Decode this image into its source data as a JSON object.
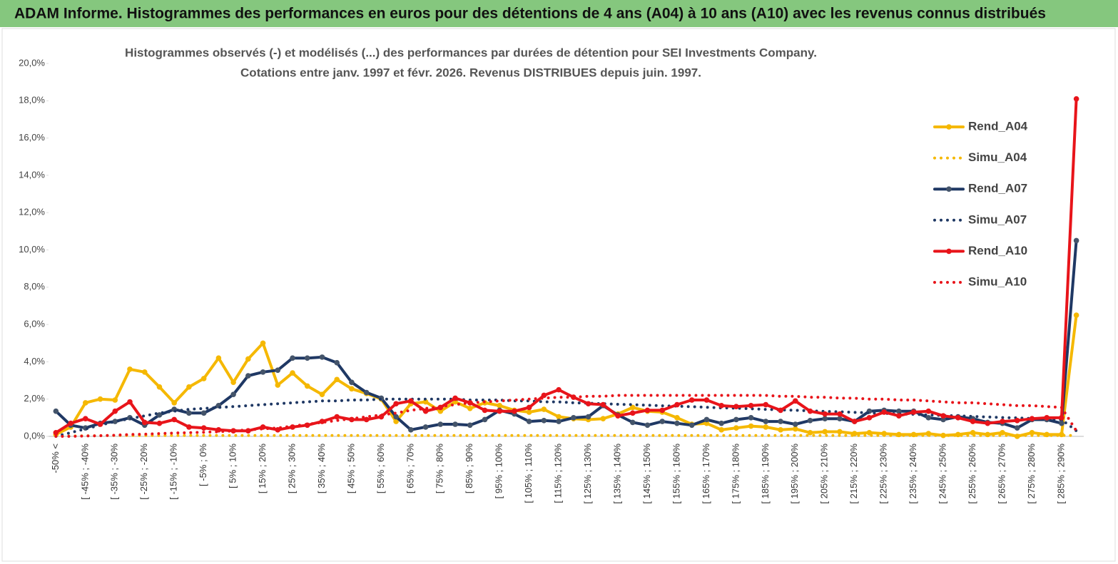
{
  "header": {
    "title": "ADAM Informe. Histogrammes des performances en euros pour des détentions de 4 ans (A04) à 10 ans (A10) avec les revenus connus distribués"
  },
  "chart_data": {
    "type": "line",
    "title": "Histogrammes observés (-) et modélisés (...) des performances par durées de détention pour SEI Investments Company.",
    "subtitle": "Cotations entre janv. 1997 et févr.  2026. Revenus DISTRIBUES depuis juin. 1997.",
    "categories": [
      "-50% <",
      null,
      "[ -45% ; -40%",
      null,
      "[ -35% ; -30%",
      null,
      "[ -25% ; -20%",
      null,
      "[ -15% ; -10%",
      null,
      "[ -5% ; 0%",
      null,
      "[ 5% ; 10%",
      null,
      "[ 15% ; 20%",
      null,
      "[ 25% ; 30%",
      null,
      "[ 35% ; 40%",
      null,
      "[ 45% ; 50%",
      null,
      "[ 55% ; 60%",
      null,
      "[ 65% ; 70%",
      null,
      "[ 75% ; 80%",
      null,
      "[ 85% ; 90%",
      null,
      "[ 95% ; 100%",
      null,
      "[ 105% ; 110%",
      null,
      "[ 115% ; 120%",
      null,
      "[ 125% ; 130%",
      null,
      "[ 135% ; 140%",
      null,
      "[ 145% ; 150%",
      null,
      "[ 155% ; 160%",
      null,
      "[ 165% ; 170%",
      null,
      "[ 175% ; 180%",
      null,
      "[ 185% ; 190%",
      null,
      "[ 195% ; 200%",
      null,
      "[ 205% ; 210%",
      null,
      "[ 215% ; 220%",
      null,
      "[ 225% ; 230%",
      null,
      "[ 235% ; 240%",
      null,
      "[ 245% ; 250%",
      null,
      "[ 255% ; 260%",
      null,
      "[ 265% ; 270%",
      null,
      "[ 275% ; 280%",
      null,
      "[ 285% ; 290%",
      null
    ],
    "series": [
      {
        "name": "Rend_A04",
        "color": "#f5b800",
        "style": "solid",
        "marker": true,
        "values": [
          0.1,
          0.5,
          1.8,
          2.0,
          1.95,
          3.6,
          3.45,
          2.65,
          1.8,
          2.65,
          3.1,
          4.2,
          2.9,
          4.15,
          5.0,
          2.75,
          3.4,
          2.7,
          2.25,
          3.05,
          2.55,
          2.3,
          2.0,
          0.8,
          1.75,
          1.85,
          1.35,
          1.85,
          1.5,
          1.8,
          1.65,
          1.4,
          1.3,
          1.45,
          1.05,
          0.95,
          0.9,
          0.95,
          1.2,
          1.55,
          1.35,
          1.3,
          1.0,
          0.65,
          0.7,
          0.35,
          0.45,
          0.55,
          0.5,
          0.35,
          0.4,
          0.2,
          0.25,
          0.25,
          0.15,
          0.2,
          0.15,
          0.1,
          0.1,
          0.15,
          0.05,
          0.1,
          0.2,
          0.1,
          0.2,
          0.0,
          0.2,
          0.1,
          0.1,
          6.5
        ]
      },
      {
        "name": "Simu_A04",
        "color": "#f5b800",
        "style": "dotted",
        "marker": false,
        "values": [
          0,
          0.02,
          0.03,
          0.04,
          0.05,
          0.05,
          0.05,
          0.05,
          0.05,
          0.05,
          0.05,
          0.05,
          0.05,
          0.05,
          0.05,
          0.05,
          0.05,
          0.05,
          0.05,
          0.05,
          0.05,
          0.05,
          0.05,
          0.05,
          0.05,
          0.05,
          0.05,
          0.05,
          0.05,
          0.05,
          0.05,
          0.05,
          0.05,
          0.05,
          0.05,
          0.05,
          0.05,
          0.05,
          0.05,
          0.05,
          0.05,
          0.05,
          0.05,
          0.05,
          0.05,
          0.05,
          0.05,
          0.05,
          0.05,
          0.05,
          0.05,
          0.05,
          0.05,
          0.05,
          0.05,
          0.05,
          0.05,
          0.05,
          0.05,
          0.05,
          0.05,
          0.05,
          0.05,
          0.05,
          0.05,
          0.05,
          0.05,
          0.05,
          0.05,
          0.05
        ]
      },
      {
        "name": "Rend_A07",
        "color": "#1f3864",
        "style": "solid",
        "marker": true,
        "values": [
          1.35,
          0.6,
          0.45,
          0.7,
          0.8,
          1.0,
          0.6,
          1.15,
          1.45,
          1.25,
          1.25,
          1.65,
          2.25,
          3.25,
          3.45,
          3.55,
          4.2,
          4.2,
          4.25,
          3.95,
          2.9,
          2.35,
          2.05,
          1.05,
          0.35,
          0.5,
          0.65,
          0.65,
          0.6,
          0.9,
          1.4,
          1.2,
          0.8,
          0.85,
          0.8,
          1.0,
          1.05,
          1.65,
          1.15,
          0.75,
          0.6,
          0.8,
          0.7,
          0.6,
          0.9,
          0.7,
          0.9,
          1.0,
          0.8,
          0.8,
          0.65,
          0.85,
          0.95,
          0.95,
          0.8,
          1.35,
          1.4,
          1.35,
          1.35,
          1.0,
          0.9,
          1.05,
          0.95,
          0.75,
          0.7,
          0.45,
          0.9,
          0.9,
          0.7,
          10.5
        ]
      },
      {
        "name": "Simu_A07",
        "color": "#1f3864",
        "style": "dotted",
        "marker": false,
        "values": [
          0,
          0.2,
          0.4,
          0.6,
          0.8,
          0.95,
          1.1,
          1.25,
          1.35,
          1.45,
          1.5,
          1.55,
          1.6,
          1.65,
          1.7,
          1.75,
          1.8,
          1.85,
          1.9,
          1.9,
          1.95,
          1.95,
          2.0,
          2.0,
          2.0,
          2.0,
          2.0,
          2.0,
          1.95,
          1.95,
          1.95,
          1.9,
          1.9,
          1.85,
          1.85,
          1.8,
          1.78,
          1.75,
          1.72,
          1.7,
          1.67,
          1.64,
          1.62,
          1.59,
          1.56,
          1.53,
          1.51,
          1.48,
          1.45,
          1.42,
          1.4,
          1.37,
          1.34,
          1.32,
          1.29,
          1.26,
          1.23,
          1.21,
          1.18,
          1.15,
          1.12,
          1.1,
          1.07,
          1.04,
          1.01,
          0.99,
          0.96,
          0.93,
          0.9,
          0.3
        ]
      },
      {
        "name": "Rend_A10",
        "color": "#e8141a",
        "style": "solid",
        "marker": true,
        "values": [
          0.2,
          0.7,
          0.95,
          0.65,
          1.35,
          1.85,
          0.75,
          0.7,
          0.9,
          0.5,
          0.45,
          0.35,
          0.3,
          0.3,
          0.5,
          0.35,
          0.5,
          0.6,
          0.8,
          1.05,
          0.9,
          0.9,
          1.05,
          1.75,
          1.9,
          1.35,
          1.55,
          2.05,
          1.8,
          1.4,
          1.35,
          1.35,
          1.55,
          2.2,
          2.5,
          2.1,
          1.75,
          1.7,
          1.1,
          1.25,
          1.4,
          1.4,
          1.7,
          1.95,
          1.95,
          1.65,
          1.6,
          1.65,
          1.7,
          1.4,
          1.9,
          1.35,
          1.2,
          1.2,
          0.8,
          1.0,
          1.3,
          1.1,
          1.3,
          1.35,
          1.1,
          1.0,
          0.8,
          0.7,
          0.8,
          0.85,
          0.95,
          1.0,
          1.0,
          18.1
        ]
      },
      {
        "name": "Simu_A10",
        "color": "#e8141a",
        "style": "dotted",
        "marker": false,
        "values": [
          0,
          0,
          0.02,
          0.04,
          0.06,
          0.1,
          0.12,
          0.15,
          0.18,
          0.2,
          0.22,
          0.25,
          0.3,
          0.35,
          0.4,
          0.45,
          0.55,
          0.65,
          0.75,
          0.85,
          0.95,
          1.05,
          1.15,
          1.25,
          1.4,
          1.5,
          1.6,
          1.7,
          1.8,
          1.85,
          1.9,
          1.95,
          2.0,
          2.05,
          2.1,
          2.1,
          2.15,
          2.15,
          2.2,
          2.2,
          2.2,
          2.2,
          2.2,
          2.2,
          2.2,
          2.2,
          2.2,
          2.2,
          2.2,
          2.15,
          2.15,
          2.1,
          2.1,
          2.05,
          2.05,
          2.0,
          2.0,
          1.95,
          1.95,
          1.9,
          1.85,
          1.8,
          1.8,
          1.75,
          1.7,
          1.65,
          1.65,
          1.6,
          1.55,
          0.3
        ]
      }
    ],
    "ylim": [
      0,
      20
    ],
    "yticks": [
      {
        "value": 0,
        "label": "0,0%"
      },
      {
        "value": 2,
        "label": "2,0%"
      },
      {
        "value": 4,
        "label": "4,0%"
      },
      {
        "value": 6,
        "label": "6,0%"
      },
      {
        "value": 8,
        "label": "8,0%"
      },
      {
        "value": 10,
        "label": "10,0%"
      },
      {
        "value": 12,
        "label": "12,0%"
      },
      {
        "value": 14,
        "label": "14,0%"
      },
      {
        "value": 16,
        "label": "16,0%"
      },
      {
        "value": 18,
        "label": "18,0%"
      },
      {
        "value": 20,
        "label": "20,0%"
      }
    ],
    "grid": false,
    "legend": "right"
  }
}
